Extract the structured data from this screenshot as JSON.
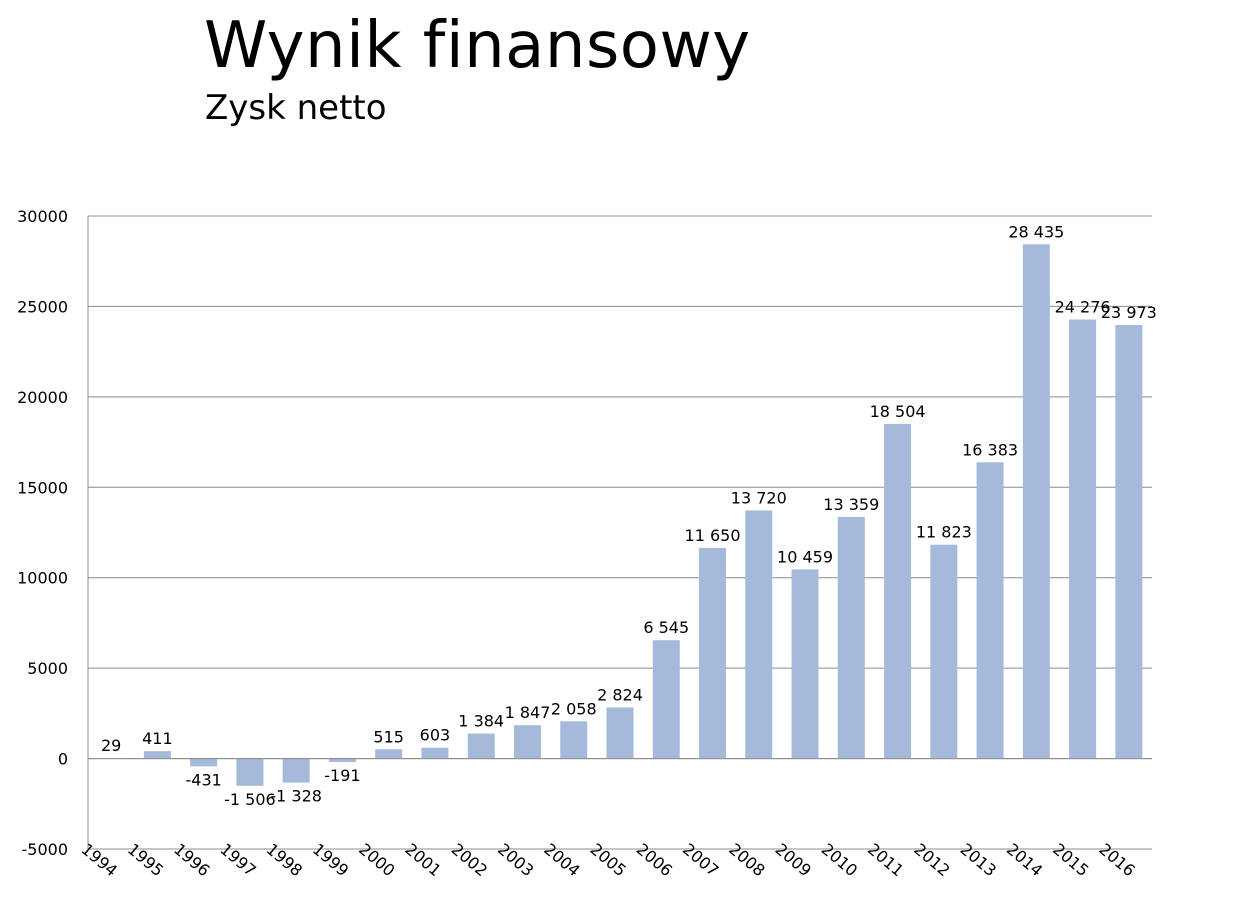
{
  "title": "Wynik finansowy",
  "subtitle": "Zysk netto",
  "chart_data": {
    "type": "bar",
    "title": "Wynik finansowy",
    "subtitle": "Zysk netto",
    "xlabel": "",
    "ylabel": "",
    "ylim": [
      -5000,
      30000
    ],
    "yticks": [
      30000,
      25000,
      20000,
      15000,
      10000,
      5000,
      0,
      -5000
    ],
    "ytick_labels": [
      "30000",
      "25000",
      "20000",
      "15000",
      "10000",
      "5000",
      "0",
      "-5000"
    ],
    "grid": true,
    "legend": "none",
    "bar_color": "#a5b9da",
    "categories": [
      "1994",
      "1995",
      "1996",
      "1997",
      "1998",
      "1999",
      "2000",
      "2001",
      "2002",
      "2003",
      "2004",
      "2005",
      "2006",
      "2007",
      "2008",
      "2009",
      "2010",
      "2011",
      "2012",
      "2013",
      "2014",
      "2015",
      "2016"
    ],
    "values": [
      29,
      411,
      -431,
      -1506,
      -1328,
      -191,
      515,
      603,
      1384,
      1847,
      2058,
      2824,
      6545,
      11650,
      13720,
      10459,
      13359,
      18504,
      11823,
      16383,
      28435,
      24276,
      23973
    ],
    "data_labels": [
      "29",
      "411",
      "-431",
      "-1 506",
      "-1 328",
      "-191",
      "515",
      "603",
      "1 384",
      "1 847",
      "2 058",
      "2 824",
      "6 545",
      "11 650",
      "13 720",
      "10 459",
      "13 359",
      "18 504",
      "11 823",
      "16 383",
      "28 435",
      "24 276",
      "23 973"
    ]
  }
}
